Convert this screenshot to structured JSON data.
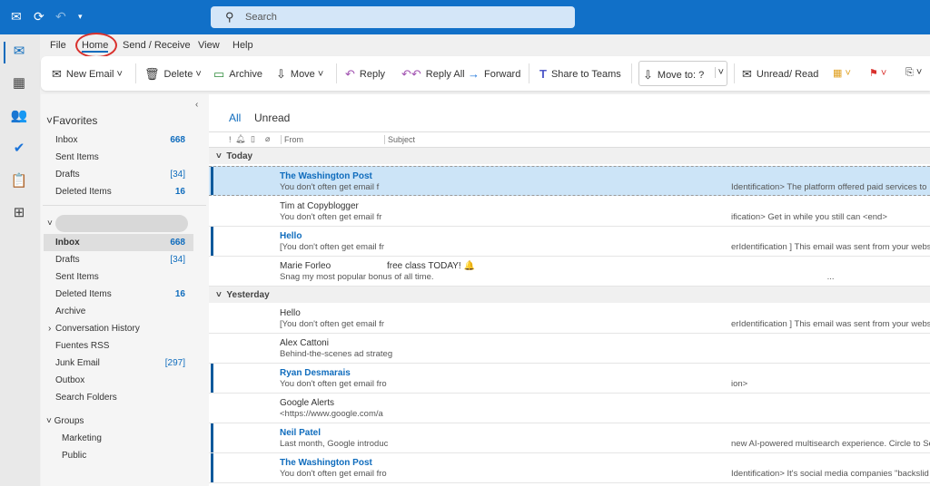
{
  "titlebar": {
    "search_placeholder": "Search"
  },
  "menu": [
    "File",
    "Home",
    "Send / Receive",
    "View",
    "Help"
  ],
  "ribbon": {
    "new_email": "New Email",
    "delete": "Delete",
    "archive": "Archive",
    "move": "Move",
    "reply": "Reply",
    "reply_all": "Reply All",
    "forward": "Forward",
    "share_teams": "Share to Teams",
    "move_to": "Move to: ?",
    "unread_read": "Unread/ Read"
  },
  "folders": {
    "favorites_label": "Favorites",
    "favorites": [
      {
        "name": "Inbox",
        "count": "668"
      },
      {
        "name": "Sent Items",
        "count": ""
      },
      {
        "name": "Drafts",
        "count": "[34]"
      },
      {
        "name": "Deleted Items",
        "count": "16"
      }
    ],
    "account": [
      {
        "name": "Inbox",
        "count": "668"
      },
      {
        "name": "Drafts",
        "count": "[34]"
      },
      {
        "name": "Sent Items",
        "count": ""
      },
      {
        "name": "Deleted Items",
        "count": "16"
      },
      {
        "name": "Archive",
        "count": ""
      },
      {
        "name": "Conversation History",
        "count": ""
      },
      {
        "name": "Fuentes RSS",
        "count": ""
      },
      {
        "name": "Junk Email",
        "count": "[297]"
      },
      {
        "name": "Outbox",
        "count": ""
      },
      {
        "name": "Search Folders",
        "count": ""
      }
    ],
    "groups_label": "Groups",
    "groups": [
      "Marketing",
      "Public"
    ]
  },
  "list": {
    "tabs": [
      "All",
      "Unread"
    ],
    "columns": {
      "from": "From",
      "subject": "Subject"
    },
    "groups": [
      "Today",
      "Yesterday"
    ],
    "today": [
      {
        "from": "The Washington Post",
        "subject": "",
        "preview": "You don't often get email f",
        "right": "Identification>   The platform offered paid services to"
      },
      {
        "from": "Tim at Copyblogger",
        "subject": "",
        "preview": "You don't often get email fr",
        "right": "ification>   Get in while you still can <end>"
      },
      {
        "from": "Hello",
        "subject": "",
        "preview": "[You don't often get email fr",
        "right": "erIdentification ]  This email was sent from your websi"
      },
      {
        "from": "Marie Forleo",
        "subject": "free class TODAY! 🔔",
        "preview": "Snag my most popular bonus of all time.",
        "right": "                                        ..."
      }
    ],
    "yesterday": [
      {
        "from": "Hello",
        "preview": "[You don't often get email fr",
        "right": "erIdentification ]  This email was sent from your websi"
      },
      {
        "from": "Alex Cattoni",
        "preview": "Behind-the-scenes ad strateg",
        "right": ""
      },
      {
        "from": "Ryan Desmarais",
        "preview": "You don't often get email fro",
        "right": "ion>"
      },
      {
        "from": "Google Alerts",
        "preview": "<https://www.google.com/a",
        "right": ""
      },
      {
        "from": "Neil Patel",
        "preview": "Last month, Google introduc",
        "right": "new AI-powered multisearch experience.   Circle to Se"
      },
      {
        "from": "The Washington Post",
        "preview": "You don't often get email fro",
        "right": "Identification>   It's social media companies \"backslid"
      }
    ]
  }
}
